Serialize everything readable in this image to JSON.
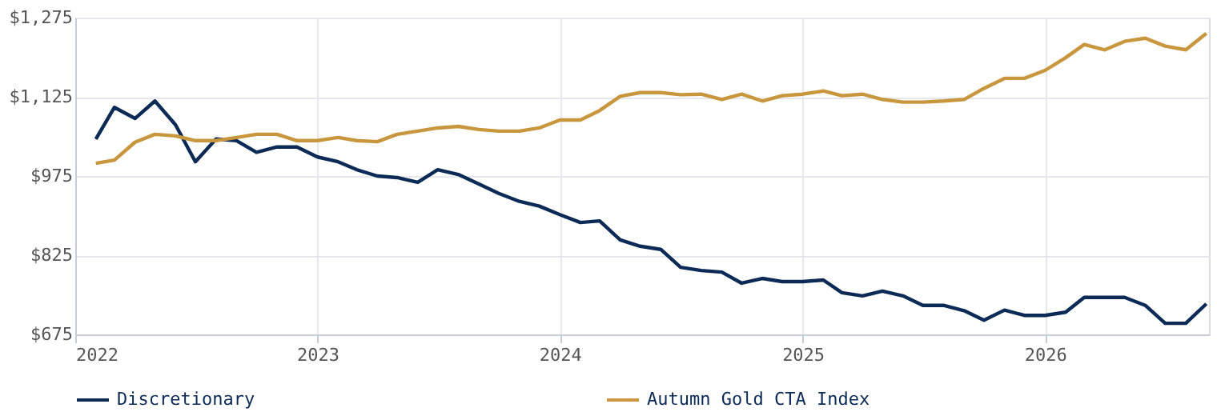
{
  "chart_data": {
    "type": "line",
    "x": [
      "2022-02",
      "2022-03",
      "2022-04",
      "2022-05",
      "2022-06",
      "2022-07",
      "2022-08",
      "2022-09",
      "2022-10",
      "2022-11",
      "2022-12",
      "2023-01",
      "2023-02",
      "2023-03",
      "2023-04",
      "2023-05",
      "2023-06",
      "2023-07",
      "2023-08",
      "2023-09",
      "2023-10",
      "2023-11",
      "2023-12",
      "2024-01",
      "2024-02",
      "2024-03",
      "2024-04",
      "2024-05",
      "2024-06",
      "2024-07",
      "2024-08",
      "2024-09",
      "2024-10",
      "2024-11",
      "2024-12",
      "2025-01",
      "2025-02",
      "2025-03",
      "2025-04",
      "2025-05",
      "2025-06",
      "2025-07",
      "2025-08",
      "2025-09",
      "2025-10",
      "2025-11",
      "2025-12",
      "2026-01",
      "2026-02",
      "2026-03",
      "2026-04",
      "2026-05",
      "2026-06",
      "2026-07",
      "2026-08",
      "2026-09"
    ],
    "series": [
      {
        "name": "Discretionary",
        "color": "#0b2a55",
        "values": [
          1045,
          1105,
          1084,
          1117,
          1072,
          1002,
          1045,
          1042,
          1020,
          1030,
          1030,
          1011,
          1002,
          987,
          975,
          972,
          963,
          987,
          978,
          960,
          942,
          927,
          918,
          902,
          887,
          890,
          854,
          842,
          836,
          802,
          796,
          793,
          772,
          781,
          775,
          775,
          778,
          754,
          748,
          757,
          748,
          730,
          730,
          720,
          702,
          721,
          711,
          711,
          717,
          745,
          745,
          745,
          730,
          696,
          696,
          733
        ]
      },
      {
        "name": "Autumn Gold CTA Index",
        "color": "#c8963c",
        "values": [
          999,
          1005,
          1039,
          1054,
          1051,
          1042,
          1042,
          1048,
          1054,
          1054,
          1042,
          1042,
          1048,
          1042,
          1040,
          1054,
          1060,
          1066,
          1069,
          1063,
          1060,
          1060,
          1066,
          1081,
          1081,
          1099,
          1126,
          1133,
          1133,
          1129,
          1130,
          1120,
          1130,
          1117,
          1127,
          1130,
          1136,
          1127,
          1130,
          1120,
          1115,
          1115,
          1117,
          1120,
          1141,
          1160,
          1160,
          1175,
          1199,
          1224,
          1214,
          1230,
          1236,
          1221,
          1214,
          1245
        ]
      }
    ],
    "xlim": [
      "2022-01-01",
      "2026-09-05"
    ],
    "xticks": [
      {
        "value": "2022-01-01",
        "label": "2022"
      },
      {
        "value": "2023-01-01",
        "label": "2023"
      },
      {
        "value": "2024-01-01",
        "label": "2024"
      },
      {
        "value": "2025-01-01",
        "label": "2025"
      },
      {
        "value": "2026-01-01",
        "label": "2026"
      }
    ],
    "ylim": [
      675,
      1275
    ],
    "yticks": [
      {
        "value": 675,
        "label": "$675"
      },
      {
        "value": 825,
        "label": "$825"
      },
      {
        "value": 975,
        "label": "$975"
      },
      {
        "value": 1125,
        "label": "$1,125"
      },
      {
        "value": 1275,
        "label": "$1,275"
      }
    ],
    "grid": true,
    "legend": "bottom",
    "marker": "none",
    "line_style": "solid"
  }
}
